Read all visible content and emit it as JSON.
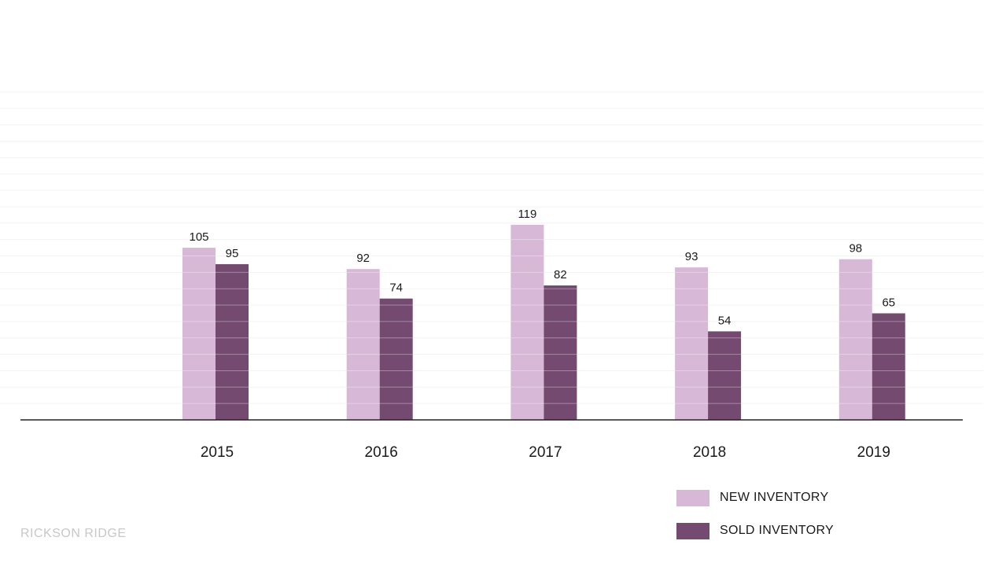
{
  "chart_data": {
    "type": "bar",
    "categories": [
      "2015",
      "2016",
      "2017",
      "2018",
      "2019"
    ],
    "series": [
      {
        "name": "NEW INVENTORY",
        "values": [
          105,
          92,
          119,
          93,
          98
        ],
        "color": "#d7b8d7"
      },
      {
        "name": "SOLD INVENTORY",
        "values": [
          95,
          74,
          82,
          54,
          65
        ],
        "color": "#744a71"
      }
    ],
    "ylim": [
      0,
      200
    ],
    "grid": true,
    "legend_position": "bottom-right",
    "data_labels": true
  },
  "brand": {
    "text": "RICKSON RIDGE"
  }
}
